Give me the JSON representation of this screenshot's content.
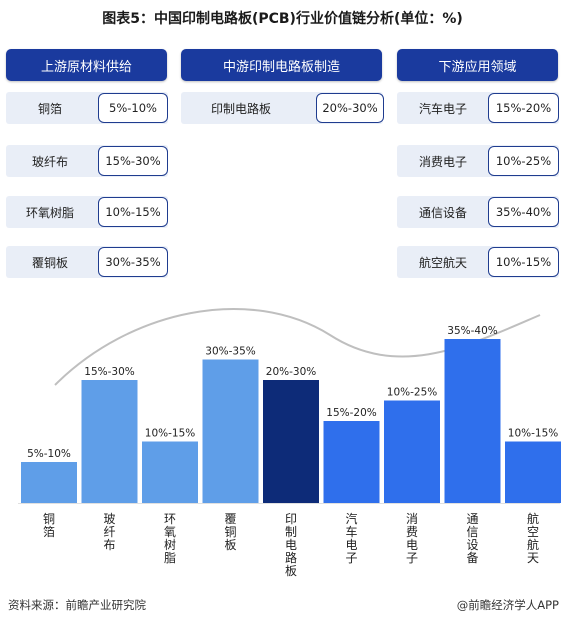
{
  "title": "图表5：中国印制电路板(PCB)行业价值链分析(单位：%)",
  "columns": [
    {
      "header": "上游原材料供给",
      "items": [
        {
          "label": "铜箔",
          "pct": "5%-10%"
        },
        {
          "label": "玻纤布",
          "pct": "15%-30%"
        },
        {
          "label": "环氧树脂",
          "pct": "10%-15%"
        },
        {
          "label": "覆铜板",
          "pct": "30%-35%"
        }
      ]
    },
    {
      "header": "中游印制电路板制造",
      "items": [
        {
          "label": "印制电路板",
          "pct": "20%-30%"
        }
      ]
    },
    {
      "header": "下游应用领域",
      "items": [
        {
          "label": "汽车电子",
          "pct": "15%-20%"
        },
        {
          "label": "消费电子",
          "pct": "10%-25%"
        },
        {
          "label": "通信设备",
          "pct": "35%-40%"
        },
        {
          "label": "航空航天",
          "pct": "10%-15%"
        }
      ]
    }
  ],
  "chart_data": {
    "type": "bar",
    "categories": [
      "铜箔",
      "玻纤布",
      "环氧树脂",
      "覆铜板",
      "印制电路板",
      "汽车电子",
      "消费电子",
      "通信设备",
      "航空航天"
    ],
    "values": [
      {
        "label": "5%-10%",
        "low": 5,
        "high": 10
      },
      {
        "label": "15%-30%",
        "low": 15,
        "high": 30
      },
      {
        "label": "10%-15%",
        "low": 10,
        "high": 15
      },
      {
        "label": "30%-35%",
        "low": 30,
        "high": 35
      },
      {
        "label": "20%-30%",
        "low": 20,
        "high": 30
      },
      {
        "label": "15%-20%",
        "low": 15,
        "high": 20
      },
      {
        "label": "10%-25%",
        "low": 10,
        "high": 25
      },
      {
        "label": "35%-40%",
        "low": 35,
        "high": 40
      },
      {
        "label": "10%-15%",
        "low": 10,
        "high": 15
      }
    ],
    "segments": [
      "upstream",
      "upstream",
      "upstream",
      "upstream",
      "midstream",
      "downstream",
      "downstream",
      "downstream",
      "downstream"
    ],
    "colors": {
      "upstream": "#5f9ee8",
      "midstream": "#0d2b78",
      "downstream": "#2f6fec",
      "curve": "#bfbfbf"
    },
    "title": "",
    "xlabel": "",
    "ylabel": "",
    "grid": false
  },
  "footer": {
    "source": "资料来源：前瞻产业研究院",
    "brand": "@前瞻经济学人APP",
    "brand_icon": "qianzhan-logo-icon"
  }
}
